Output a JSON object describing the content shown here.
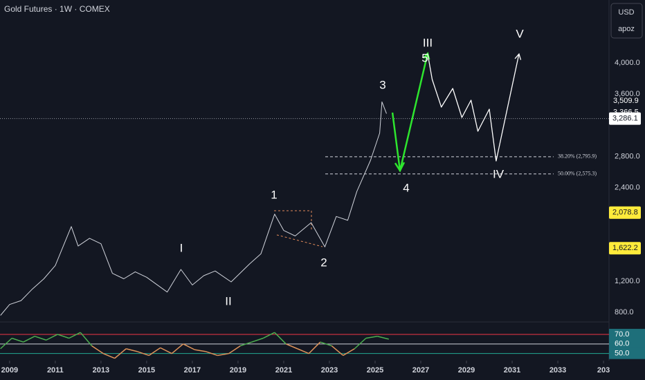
{
  "header": {
    "title": "Gold Futures · 1W · COMEX",
    "currency": "USD",
    "account": "apoz"
  },
  "chart_data": {
    "type": "line",
    "xlim": [
      2008.58,
      2035.24
    ],
    "xticks": [
      2009,
      2011,
      2013,
      2015,
      2017,
      2019,
      2021,
      2023,
      2025,
      2027,
      2029,
      2031,
      2033,
      {
        "value": 2035,
        "label": "203"
      }
    ],
    "ylim": [
      685,
      4807
    ],
    "yticks": [
      {
        "value": 800,
        "label": "800.0"
      },
      {
        "value": 1200,
        "label": "1,200.0"
      },
      {
        "value": 2400,
        "label": "2,400.0"
      },
      {
        "value": 2800,
        "label": "2,800.0"
      },
      {
        "value": 3600,
        "label": "3,600.0"
      },
      {
        "value": 4000,
        "label": "4,000.0"
      }
    ],
    "series": [
      {
        "color": "#d1d4dc",
        "x": [
          2008.6,
          2009.0,
          2009.5,
          2010.0,
          2010.5,
          2011.0,
          2011.7,
          2012.0,
          2012.5,
          2013.0,
          2013.5,
          2014.0,
          2014.5,
          2015.0,
          2015.9,
          2016.5,
          2017.0,
          2017.5,
          2018.0,
          2018.7,
          2019.5,
          2020.0,
          2020.6,
          2021.0,
          2021.5,
          2022.2,
          2022.8,
          2023.3,
          2023.8,
          2024.2,
          2024.8,
          2025.2,
          2025.3,
          2025.5
        ],
        "values": [
          760,
          900,
          950,
          1100,
          1230,
          1400,
          1900,
          1650,
          1750,
          1680,
          1300,
          1230,
          1320,
          1250,
          1060,
          1350,
          1150,
          1270,
          1330,
          1190,
          1420,
          1550,
          2060,
          1850,
          1780,
          1950,
          1640,
          2030,
          1980,
          2350,
          2750,
          3100,
          3500,
          3350
        ]
      },
      {
        "color": "#2ee62e",
        "x": [
          2025.76,
          2026.09,
          2027.3
        ],
        "values": [
          3362,
          2617,
          4120
        ]
      },
      {
        "color": "#ffffff",
        "x": [
          2027.3,
          2027.5,
          2027.9,
          2028.4,
          2028.8,
          2029.2,
          2029.5,
          2030.0,
          2030.3,
          2031.3
        ],
        "values": [
          4120,
          3788,
          3433,
          3672,
          3300,
          3522,
          3123,
          3406,
          2742,
          4115
        ]
      }
    ],
    "annotations": [
      "I",
      "II",
      "1",
      "2",
      "3",
      "4",
      "5",
      "III",
      "IV",
      "V"
    ],
    "fib_levels": [
      {
        "value": 2795.9,
        "label": "38.20% (2,795.9)"
      },
      {
        "value": 2575.3,
        "label": "50.00% (2,575.3)"
      }
    ],
    "last_price": {
      "value": 3286.1,
      "label": "3,286.1"
    },
    "price_tags": [
      {
        "value": 3509.9,
        "label": "3,509.9"
      },
      {
        "value": 3366.5,
        "label": "3,366.5"
      }
    ],
    "highlight_tags": [
      {
        "value": 2078.8,
        "label": "2,078.8"
      },
      {
        "value": 1622.2,
        "label": "1,622.2"
      }
    ],
    "rsi": {
      "ylim": [
        44,
        81.5
      ],
      "yticks": [
        {
          "value": 70,
          "label": "70.0"
        },
        {
          "value": 60,
          "label": "60.0"
        },
        {
          "value": 50,
          "label": "50.0"
        }
      ],
      "x": [
        2008.6,
        2009.1,
        2009.6,
        2010.1,
        2010.6,
        2011.1,
        2011.6,
        2012.1,
        2012.6,
        2013.1,
        2013.6,
        2014.1,
        2014.6,
        2015.1,
        2015.6,
        2016.1,
        2016.6,
        2017.1,
        2017.6,
        2018.1,
        2018.6,
        2019.1,
        2019.6,
        2020.1,
        2020.6,
        2021.1,
        2021.6,
        2022.1,
        2022.6,
        2023.1,
        2023.6,
        2024.1,
        2024.6,
        2025.1,
        2025.6
      ],
      "values": [
        55,
        66,
        62,
        68,
        64,
        70,
        66,
        72,
        58,
        50,
        45,
        55,
        52,
        48,
        56,
        50,
        60,
        54,
        52,
        48,
        50,
        58,
        62,
        66,
        72,
        60,
        55,
        50,
        62,
        58,
        48,
        55,
        66,
        68,
        65
      ]
    }
  }
}
